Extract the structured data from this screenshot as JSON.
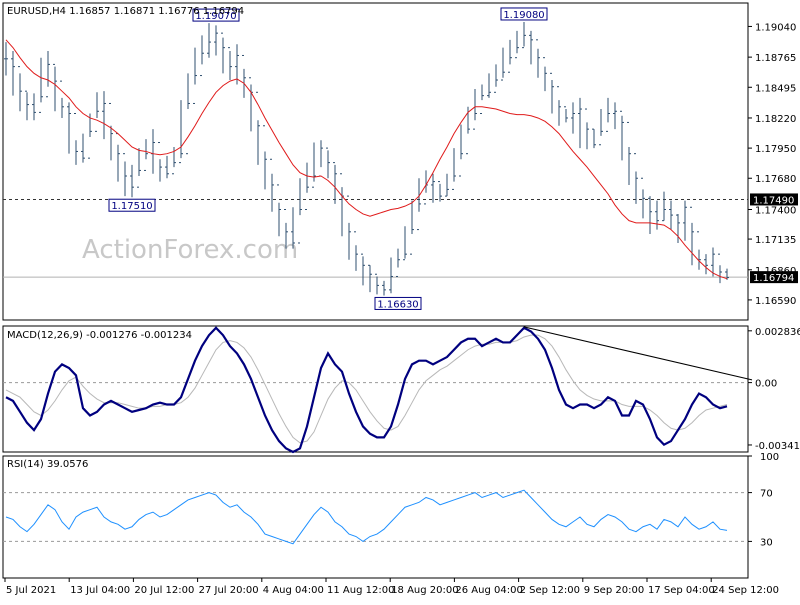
{
  "colors": {
    "background": "#ffffff",
    "price_bars": "#2f4f6f",
    "moving_average": "#e01b1b",
    "macd_line": "#00007f",
    "signal_line": "#b8b8b8",
    "rsi_line": "#1e90ff",
    "trendline": "#000000",
    "frame": "#000000",
    "dotted_level": "#9a9a9a",
    "label_box_border": "#000080",
    "label_text": "#000080",
    "watermark": "#c8c8c8"
  },
  "watermark": "ActionForex.com",
  "chart_data": [
    {
      "type": "line",
      "panel": "price",
      "header": "EURUSD,H4  1.16857 1.16871 1.16776 1.16794",
      "ylim": [
        1.1641,
        1.1925
      ],
      "y_ticks": [
        "1.19040",
        "1.18765",
        "1.18495",
        "1.18220",
        "1.17950",
        "1.17680",
        "1.17400",
        "1.17135",
        "1.16860",
        "1.16590"
      ],
      "y_tick_values": [
        1.1904,
        1.18765,
        1.18495,
        1.1822,
        1.1795,
        1.1768,
        1.174,
        1.17135,
        1.1686,
        1.1659
      ],
      "x_tick_labels": [
        "5 Jul 2021",
        "13 Jul 04:00",
        "20 Jul 12:00",
        "27 Jul 20:00",
        "4 Aug 04:00",
        "11 Aug 12:00",
        "18 Aug 20:00",
        "26 Aug 04:00",
        "2 Sep 12:00",
        "9 Sep 20:00",
        "17 Sep 04:00",
        "24 Sep 12:00"
      ],
      "annotations": [
        {
          "text": "1.19070",
          "value": 1.1907,
          "bar": 30
        },
        {
          "text": "1.17510",
          "value": 1.1751,
          "bar": 18
        },
        {
          "text": "1.16630",
          "value": 1.1663,
          "bar": 56
        },
        {
          "text": "1.19080",
          "value": 1.1908,
          "bar": 74
        }
      ],
      "hlines": [
        {
          "value": 1.1749,
          "label": "1.17490"
        },
        {
          "value": 1.16794,
          "label": "1.16794"
        }
      ],
      "series": [
        {
          "kind": "close",
          "values": [
            1.1875,
            1.1868,
            1.1846,
            1.1834,
            1.1827,
            1.1841,
            1.187,
            1.1855,
            1.1832,
            1.1826,
            1.1792,
            1.1786,
            1.181,
            1.1828,
            1.1835,
            1.1808,
            1.179,
            1.177,
            1.176,
            1.1775,
            1.179,
            1.18,
            1.1778,
            1.1772,
            1.1782,
            1.179,
            1.1835,
            1.186,
            1.188,
            1.189,
            1.1898,
            1.1885,
            1.1868,
            1.1878,
            1.1858,
            1.1845,
            1.1815,
            1.1785,
            1.1762,
            1.174,
            1.172,
            1.171,
            1.174,
            1.176,
            1.177,
            1.1795,
            1.1782,
            1.1772,
            1.1752,
            1.172,
            1.17,
            1.169,
            1.1682,
            1.1672,
            1.1668,
            1.168,
            1.1695,
            1.17,
            1.1722,
            1.1745,
            1.1762,
            1.1765,
            1.1752,
            1.1758,
            1.177,
            1.179,
            1.1812,
            1.1826,
            1.1842,
            1.1845,
            1.1856,
            1.1863,
            1.1876,
            1.1885,
            1.1896,
            1.1892,
            1.1876,
            1.1862,
            1.185,
            1.1832,
            1.1822,
            1.1826,
            1.183,
            1.1812,
            1.1798,
            1.181,
            1.1826,
            1.1828,
            1.1818,
            1.179,
            1.1768,
            1.175,
            1.1738,
            1.173,
            1.174,
            1.1735,
            1.1728,
            1.1742,
            1.172,
            1.1695,
            1.169,
            1.17,
            1.1684,
            1.1679
          ]
        },
        {
          "kind": "high",
          "values": [
            1.189,
            1.1882,
            1.1862,
            1.1845,
            1.1844,
            1.1876,
            1.1882,
            1.1868,
            1.184,
            1.1836,
            1.1802,
            1.1808,
            1.1826,
            1.1845,
            1.1846,
            1.1815,
            1.1798,
            1.1783,
            1.178,
            1.1795,
            1.1803,
            1.1812,
            1.1785,
            1.1788,
            1.1796,
            1.1838,
            1.1862,
            1.1885,
            1.1896,
            1.1907,
            1.1905,
            1.1894,
            1.1882,
            1.1888,
            1.1866,
            1.1852,
            1.182,
            1.1792,
            1.1772,
            1.1746,
            1.1728,
            1.1742,
            1.1768,
            1.1782,
            1.18,
            1.1802,
            1.1793,
            1.178,
            1.176,
            1.1728,
            1.1708,
            1.1698,
            1.169,
            1.168,
            1.1676,
            1.1697,
            1.1705,
            1.1725,
            1.1748,
            1.1768,
            1.1775,
            1.1772,
            1.1763,
            1.1772,
            1.1795,
            1.1816,
            1.1832,
            1.1848,
            1.1852,
            1.1862,
            1.187,
            1.1885,
            1.1892,
            1.19,
            1.1908,
            1.19,
            1.1884,
            1.1868,
            1.1856,
            1.1838,
            1.183,
            1.1836,
            1.184,
            1.1818,
            1.1812,
            1.183,
            1.184,
            1.1836,
            1.1824,
            1.1796,
            1.1774,
            1.1758,
            1.1752,
            1.1748,
            1.1756,
            1.1748,
            1.1736,
            1.1748,
            1.1728,
            1.1704,
            1.17,
            1.1706,
            1.169,
            1.1687
          ]
        },
        {
          "kind": "low",
          "values": [
            1.186,
            1.1842,
            1.1828,
            1.182,
            1.182,
            1.1836,
            1.185,
            1.1828,
            1.1822,
            1.179,
            1.178,
            1.1782,
            1.1805,
            1.1822,
            1.1803,
            1.1784,
            1.1765,
            1.1752,
            1.1751,
            1.177,
            1.1785,
            1.1772,
            1.1765,
            1.1768,
            1.1778,
            1.1786,
            1.183,
            1.1852,
            1.187,
            1.1876,
            1.1878,
            1.1862,
            1.1856,
            1.1852,
            1.184,
            1.181,
            1.178,
            1.1758,
            1.1738,
            1.1716,
            1.1705,
            1.1705,
            1.1735,
            1.1755,
            1.1765,
            1.1778,
            1.1768,
            1.1745,
            1.1716,
            1.1695,
            1.1685,
            1.1672,
            1.1666,
            1.1664,
            1.1663,
            1.1665,
            1.1688,
            1.1696,
            1.1718,
            1.1738,
            1.1755,
            1.1746,
            1.1747,
            1.1752,
            1.1765,
            1.1785,
            1.1808,
            1.182,
            1.1838,
            1.184,
            1.185,
            1.1858,
            1.187,
            1.188,
            1.1886,
            1.187,
            1.1858,
            1.1846,
            1.1826,
            1.1815,
            1.1818,
            1.1808,
            1.1795,
            1.1794,
            1.1795,
            1.1806,
            1.1818,
            1.1812,
            1.1784,
            1.1762,
            1.1745,
            1.1732,
            1.1718,
            1.1722,
            1.173,
            1.1722,
            1.171,
            1.1712,
            1.169,
            1.1686,
            1.1682,
            1.168,
            1.1674,
            1.1677
          ]
        },
        {
          "kind": "moving_average",
          "values": [
            1.1892,
            1.1885,
            1.1876,
            1.1868,
            1.1862,
            1.1858,
            1.1856,
            1.1852,
            1.1846,
            1.184,
            1.1832,
            1.1826,
            1.1822,
            1.182,
            1.1817,
            1.1813,
            1.1808,
            1.1802,
            1.1796,
            1.1793,
            1.1792,
            1.179,
            1.1789,
            1.179,
            1.1792,
            1.1796,
            1.1805,
            1.1815,
            1.1826,
            1.1836,
            1.1845,
            1.1851,
            1.1855,
            1.1857,
            1.1853,
            1.1845,
            1.1834,
            1.1822,
            1.1811,
            1.18,
            1.179,
            1.178,
            1.1773,
            1.177,
            1.1769,
            1.177,
            1.1766,
            1.176,
            1.1752,
            1.1745,
            1.174,
            1.1736,
            1.1734,
            1.1736,
            1.1738,
            1.174,
            1.1741,
            1.1743,
            1.1746,
            1.1752,
            1.1762,
            1.1773,
            1.1785,
            1.1796,
            1.1808,
            1.1818,
            1.1827,
            1.1832,
            1.1832,
            1.1831,
            1.183,
            1.1828,
            1.1826,
            1.1825,
            1.1825,
            1.1824,
            1.1822,
            1.1819,
            1.1814,
            1.1808,
            1.18,
            1.1792,
            1.1785,
            1.1778,
            1.177,
            1.1762,
            1.1754,
            1.1744,
            1.1736,
            1.173,
            1.1728,
            1.1728,
            1.1728,
            1.1727,
            1.1726,
            1.1722,
            1.1716,
            1.1708,
            1.1701,
            1.1694,
            1.1688,
            1.1683,
            1.168,
            1.1678
          ]
        }
      ]
    },
    {
      "type": "line",
      "panel": "macd",
      "header": "MACD(12,26,9) -0.001276 -0.001234",
      "ylim": [
        -0.0038,
        0.0031
      ],
      "y_ticks": [
        "0.002836",
        "0.00",
        "-0.003415"
      ],
      "y_tick_values": [
        0.002836,
        0.0,
        -0.003415
      ],
      "trendline": {
        "from_bar": 74,
        "from_value": 0.00305,
        "to_bar": 105,
        "to_value": 0.00015
      },
      "series": [
        {
          "kind": "macd",
          "values": [
            -0.0008,
            -0.001,
            -0.0016,
            -0.0022,
            -0.0026,
            -0.002,
            -0.0006,
            0.0006,
            0.001,
            0.0008,
            0.0004,
            -0.0014,
            -0.0018,
            -0.0016,
            -0.0012,
            -0.001,
            -0.0012,
            -0.0014,
            -0.0016,
            -0.0015,
            -0.0014,
            -0.0012,
            -0.0011,
            -0.0012,
            -0.0012,
            -0.0008,
            0.0002,
            0.0012,
            0.002,
            0.0026,
            0.003,
            0.0026,
            0.002,
            0.0016,
            0.001,
            0.0002,
            -0.0008,
            -0.0018,
            -0.0026,
            -0.0032,
            -0.0036,
            -0.0038,
            -0.0036,
            -0.0024,
            -0.0008,
            0.0008,
            0.0016,
            0.001,
            0.0006,
            -0.0006,
            -0.0016,
            -0.0024,
            -0.0028,
            -0.003,
            -0.003,
            -0.0024,
            -0.0012,
            0.0002,
            0.001,
            0.0012,
            0.0012,
            0.001,
            0.0012,
            0.0014,
            0.0018,
            0.0022,
            0.0024,
            0.0024,
            0.002,
            0.0022,
            0.0024,
            0.0022,
            0.0022,
            0.0026,
            0.003,
            0.0028,
            0.0024,
            0.0018,
            0.0008,
            -0.0004,
            -0.0012,
            -0.0014,
            -0.0012,
            -0.0012,
            -0.0014,
            -0.0012,
            -0.0008,
            -0.001,
            -0.0018,
            -0.0018,
            -0.001,
            -0.0012,
            -0.002,
            -0.003,
            -0.0034,
            -0.0032,
            -0.0026,
            -0.002,
            -0.0012,
            -0.0006,
            -0.0008,
            -0.0012,
            -0.0014,
            -0.0013
          ]
        },
        {
          "kind": "signal",
          "values": [
            -0.0004,
            -0.0006,
            -0.0008,
            -0.0012,
            -0.0016,
            -0.0018,
            -0.0015,
            -0.001,
            -0.0004,
            0.0001,
            0.0003,
            -0.0002,
            -0.0006,
            -0.0009,
            -0.0011,
            -0.0011,
            -0.0011,
            -0.0012,
            -0.0013,
            -0.0014,
            -0.0014,
            -0.0013,
            -0.0013,
            -0.0012,
            -0.0012,
            -0.0011,
            -0.0008,
            -0.0003,
            0.0004,
            0.0011,
            0.0018,
            0.0022,
            0.0023,
            0.0022,
            0.0019,
            0.0014,
            0.0007,
            -0.0001,
            -0.0009,
            -0.0017,
            -0.0024,
            -0.003,
            -0.0033,
            -0.0032,
            -0.0027,
            -0.0018,
            -0.0009,
            -0.0003,
            0.0001,
            -0.0,
            -0.0004,
            -0.001,
            -0.0016,
            -0.0021,
            -0.0025,
            -0.0026,
            -0.0024,
            -0.0018,
            -0.0011,
            -0.0004,
            0.0001,
            0.0004,
            0.0007,
            0.0009,
            0.0012,
            0.0015,
            0.0018,
            0.002,
            0.0021,
            0.0021,
            0.0022,
            0.0022,
            0.0022,
            0.0023,
            0.0025,
            0.0026,
            0.0026,
            0.0024,
            0.002,
            0.0014,
            0.0007,
            0.0001,
            -0.0004,
            -0.0007,
            -0.0009,
            -0.001,
            -0.001,
            -0.001,
            -0.0012,
            -0.0013,
            -0.0013,
            -0.0013,
            -0.0015,
            -0.0018,
            -0.0022,
            -0.0025,
            -0.0026,
            -0.0025,
            -0.0022,
            -0.0018,
            -0.0015,
            -0.0014,
            -0.0013,
            -0.0012
          ]
        }
      ]
    },
    {
      "type": "line",
      "panel": "rsi",
      "header": "RSI(14) 39.0576",
      "ylim": [
        0,
        100
      ],
      "y_ticks": [
        "100",
        "70",
        "30"
      ],
      "y_tick_values": [
        100,
        70,
        30
      ],
      "series": [
        {
          "kind": "rsi",
          "values": [
            50,
            48,
            42,
            38,
            44,
            52,
            60,
            56,
            46,
            40,
            50,
            54,
            56,
            58,
            50,
            46,
            44,
            40,
            42,
            48,
            52,
            54,
            50,
            52,
            56,
            60,
            64,
            66,
            68,
            70,
            68,
            62,
            58,
            60,
            54,
            50,
            44,
            36,
            34,
            32,
            30,
            28,
            36,
            44,
            52,
            58,
            54,
            46,
            42,
            36,
            34,
            30,
            34,
            36,
            40,
            46,
            52,
            58,
            60,
            62,
            66,
            64,
            60,
            62,
            64,
            66,
            68,
            70,
            66,
            68,
            70,
            66,
            68,
            70,
            72,
            66,
            60,
            54,
            48,
            44,
            42,
            46,
            50,
            44,
            42,
            48,
            52,
            50,
            46,
            40,
            38,
            42,
            44,
            40,
            48,
            46,
            42,
            50,
            44,
            40,
            42,
            46,
            40,
            39
          ]
        }
      ]
    }
  ]
}
